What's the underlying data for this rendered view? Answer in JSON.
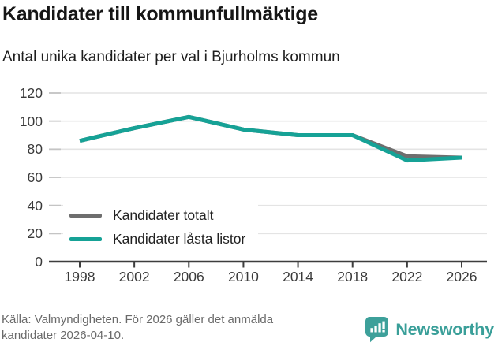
{
  "title": "Kandidater till kommunfullmäktige",
  "subtitle": "Antal unika kandidater per val i Bjurholms kommun",
  "source_note": "Källa: Valmyndigheten. För 2026 gäller det anmälda kandidater 2026-04-10.",
  "branding": {
    "name": "Newsworthy"
  },
  "colors": {
    "accent_teal": "#16a296",
    "total_gray": "#6e6e6e",
    "grid": "#e4e4e4",
    "grid_tick": "#c4c4c4",
    "axis": "#3d3d3d",
    "logo_teal": "#3da09a"
  },
  "chart_data": {
    "type": "line",
    "x": [
      1998,
      2002,
      2006,
      2010,
      2014,
      2018,
      2022,
      2026
    ],
    "series": [
      {
        "name": "Kandidater totalt",
        "color": "#6e6e6e",
        "values": [
          86,
          95,
          103,
          94,
          90,
          90,
          75,
          74
        ]
      },
      {
        "name": "Kandidater låsta listor",
        "color": "#16a296",
        "values": [
          86,
          95,
          103,
          94,
          90,
          90,
          72,
          74
        ]
      }
    ],
    "yticks": [
      0,
      20,
      40,
      60,
      80,
      100,
      120
    ],
    "ylim": [
      0,
      120
    ],
    "grid": "horizontal",
    "legend_position": "inside-bottom-left"
  }
}
